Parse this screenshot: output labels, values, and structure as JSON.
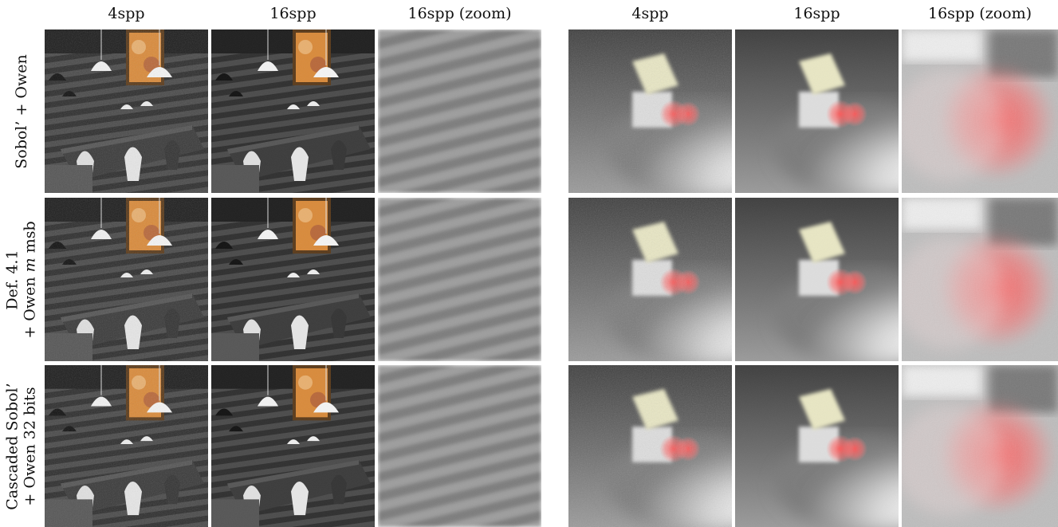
{
  "left_panel": {
    "columns": [
      "4spp",
      "16spp",
      "16spp (zoom)"
    ]
  },
  "right_panel": {
    "columns": [
      "4spp",
      "16spp",
      "16spp (zoom)"
    ]
  },
  "rows": [
    {
      "label_line1": "Sobol’ + Owen",
      "label_line2": ""
    },
    {
      "label_line1": "Def. 4.1",
      "label_line2_pre": "+ Owen ",
      "label_line2_var": "m",
      "label_line2_post": " msb"
    },
    {
      "label_line1": "Cascaded Sobol’",
      "label_line2": "+ Owen 32 bits"
    }
  ],
  "colors": {
    "background": "#ffffff",
    "wall": "#3a3a3a",
    "cube_top": "#e9e7c4",
    "glow": "#ff4a4a"
  }
}
